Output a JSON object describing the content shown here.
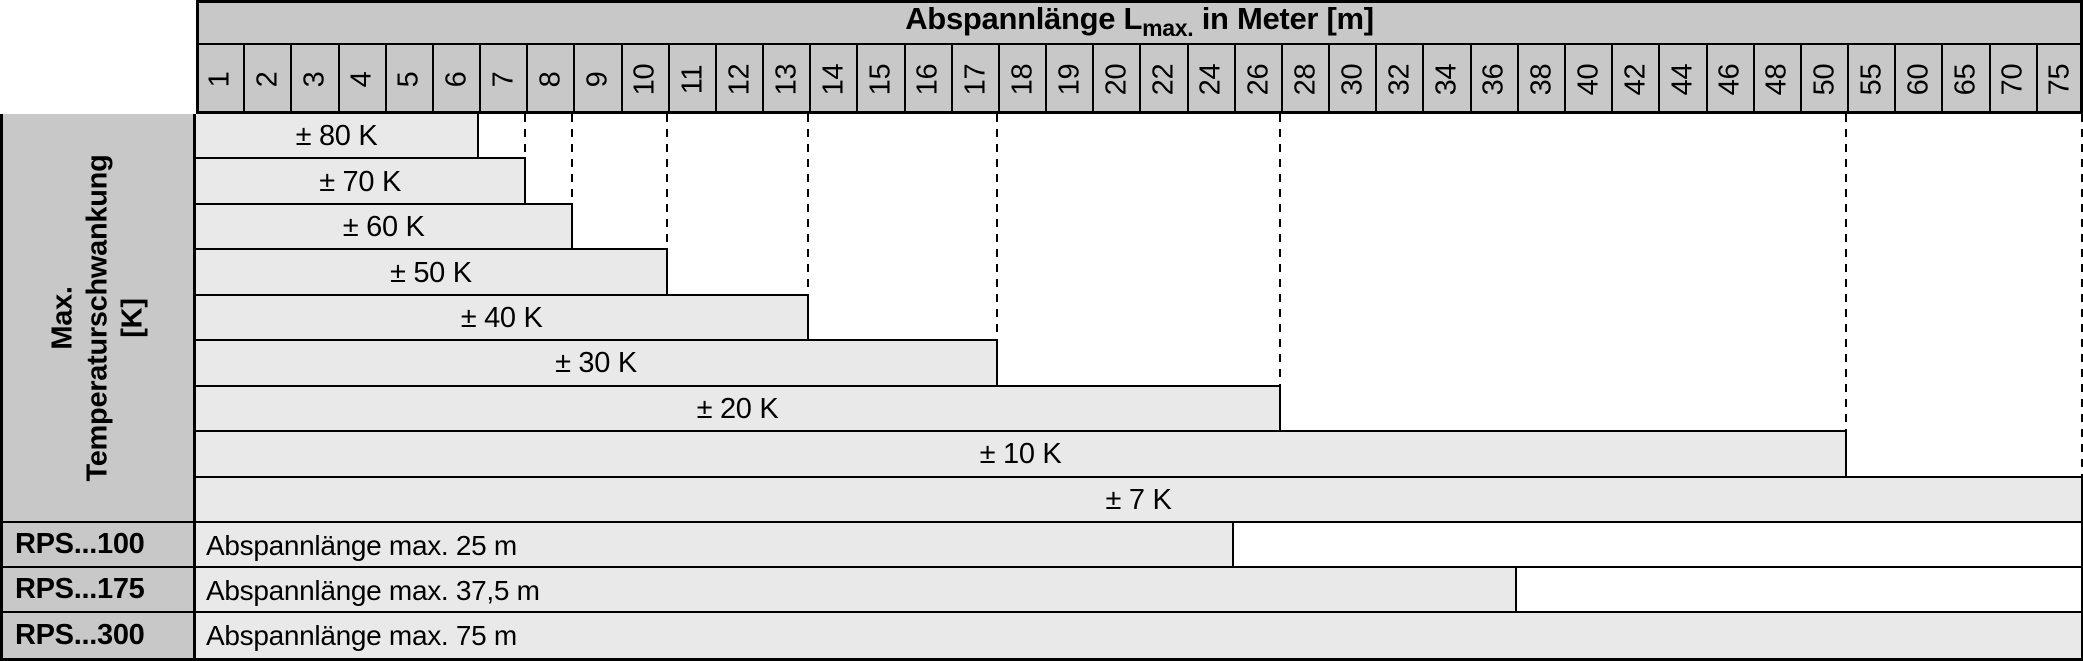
{
  "table": {
    "title": {
      "prefix": "Abspannlänge L",
      "subscript": "max.",
      "suffix": " in Meter [m]"
    },
    "side_header": {
      "lines": [
        "Max.",
        "Temperaturschwankung",
        "[K]"
      ]
    }
  },
  "colors": {
    "header_bg": "#c8c8c8",
    "bar_bg": "#e9e9e9",
    "border": "#000000",
    "background": "#ffffff"
  },
  "chart_data": {
    "type": "table",
    "title": "Abspannlänge Lmax. in Meter [m]",
    "row_group_label": "Max. Temperaturschwankung [K]",
    "columns_m": [
      1,
      2,
      3,
      4,
      5,
      6,
      7,
      8,
      9,
      10,
      11,
      12,
      13,
      14,
      15,
      16,
      17,
      18,
      19,
      20,
      22,
      24,
      26,
      28,
      30,
      32,
      34,
      36,
      38,
      40,
      42,
      44,
      46,
      48,
      50,
      55,
      60,
      65,
      70,
      75
    ],
    "temperature_rows": [
      {
        "label": "± 80 K",
        "delta_k": 80,
        "max_length_m": 6
      },
      {
        "label": "± 70 K",
        "delta_k": 70,
        "max_length_m": 7
      },
      {
        "label": "± 60 K",
        "delta_k": 60,
        "max_length_m": 8
      },
      {
        "label": "± 50 K",
        "delta_k": 50,
        "max_length_m": 10
      },
      {
        "label": "± 40 K",
        "delta_k": 40,
        "max_length_m": 13
      },
      {
        "label": "± 30 K",
        "delta_k": 30,
        "max_length_m": 17
      },
      {
        "label": "± 20 K",
        "delta_k": 20,
        "max_length_m": 26
      },
      {
        "label": "± 10 K",
        "delta_k": 10,
        "max_length_m": 50
      },
      {
        "label": "± 7 K",
        "delta_k": 7,
        "max_length_m": 75
      }
    ],
    "product_rows": [
      {
        "label": "RPS...100",
        "text": "Abspannlänge max. 25 m",
        "max_length_m": 25
      },
      {
        "label": "RPS...175",
        "text": "Abspannlänge max. 37,5 m",
        "max_length_m": 37.5
      },
      {
        "label": "RPS...300",
        "text": "Abspannlänge max. 75 m",
        "max_length_m": 75
      }
    ]
  }
}
